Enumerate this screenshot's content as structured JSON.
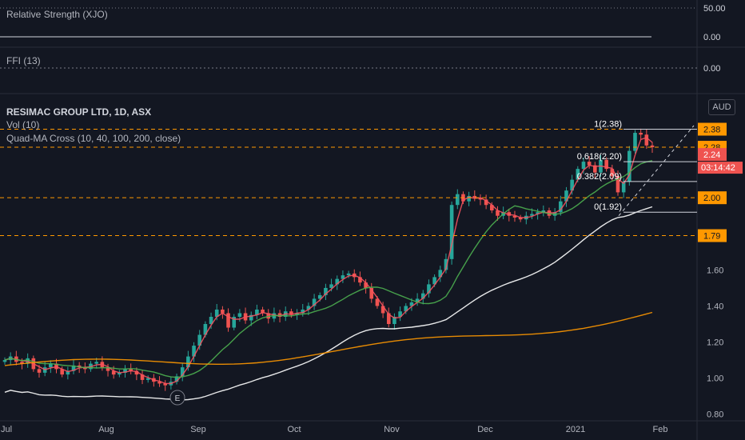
{
  "panes": {
    "rs_label": "Relative Strength (XJO)",
    "ffi_label": "FFI (13)",
    "rs_ticks": [
      "50.00",
      "0.00"
    ],
    "ffi_tick": "0.00"
  },
  "main": {
    "title": "RESIMAC GROUP LTD, 1D, ASX",
    "vol_label": "Vol (10)",
    "ma_label": "Quad-MA Cross (10, 40, 100, 200, close)",
    "currency_button": "AUD",
    "countdown": "03:14:42",
    "earnings_marker": "E"
  },
  "chart_data": {
    "type": "candlestick",
    "x_axis": {
      "labels": [
        "Jul",
        "Aug",
        "Sep",
        "Oct",
        "Nov",
        "Dec",
        "2021",
        "Feb"
      ]
    },
    "y_axis": {
      "ticks": [
        0.8,
        1.0,
        1.2,
        1.4,
        1.6
      ],
      "range": [
        0.79,
        2.4
      ]
    },
    "price_labels": [
      {
        "value": "2.38",
        "style": "orange"
      },
      {
        "value": "2.28",
        "style": "orange"
      },
      {
        "value": "2.24",
        "style": "red"
      },
      {
        "value": "2.00",
        "style": "orange"
      },
      {
        "value": "1.79",
        "style": "orange"
      }
    ],
    "horizontal_lines": [
      2.38,
      2.28,
      2.0,
      1.79
    ],
    "fibonacci": {
      "levels": [
        {
          "label": "1(2.38)",
          "value": 2.38
        },
        {
          "label": "0.618(2.20)",
          "value": 2.2
        },
        {
          "label": "0.382(2.09)",
          "value": 2.09
        },
        {
          "label": "0(1.92)",
          "value": 1.92
        }
      ]
    },
    "close_values": [
      1.1,
      1.12,
      1.09,
      1.08,
      1.11,
      1.05,
      1.03,
      1.06,
      1.08,
      1.05,
      1.02,
      1.04,
      1.07,
      1.06,
      1.05,
      1.08,
      1.09,
      1.06,
      1.04,
      1.02,
      1.03,
      1.05,
      1.04,
      1.02,
      0.99,
      1.0,
      0.98,
      0.97,
      0.96,
      0.98,
      1.01,
      1.06,
      1.12,
      1.18,
      1.24,
      1.3,
      1.34,
      1.38,
      1.36,
      1.28,
      1.34,
      1.36,
      1.32,
      1.35,
      1.38,
      1.36,
      1.33,
      1.36,
      1.34,
      1.37,
      1.35,
      1.36,
      1.38,
      1.4,
      1.44,
      1.46,
      1.5,
      1.52,
      1.55,
      1.57,
      1.58,
      1.56,
      1.53,
      1.5,
      1.44,
      1.4,
      1.36,
      1.3,
      1.34,
      1.37,
      1.4,
      1.42,
      1.44,
      1.47,
      1.52,
      1.56,
      1.6,
      1.66,
      1.96,
      2.02,
      1.98,
      2.01,
      2.0,
      1.99,
      1.96,
      1.93,
      1.9,
      1.92,
      1.9,
      1.89,
      1.88,
      1.9,
      1.91,
      1.92,
      1.93,
      1.9,
      1.92,
      1.98,
      2.04,
      2.1,
      2.16,
      2.2,
      2.18,
      2.14,
      2.21,
      2.16,
      2.12,
      2.03,
      2.09,
      2.26,
      2.36,
      2.35,
      2.29,
      2.28
    ],
    "moving_averages": [
      {
        "name": "MA10",
        "color": "#f7525f"
      },
      {
        "name": "MA40",
        "color": "#4caf50"
      },
      {
        "name": "MA100",
        "color": "#ffffff"
      },
      {
        "name": "MA200",
        "color": "#ff9800"
      }
    ],
    "colors": {
      "up": "#26a69a",
      "down": "#ef5350",
      "dashed_level": "#ff9800",
      "background": "#131722"
    }
  }
}
